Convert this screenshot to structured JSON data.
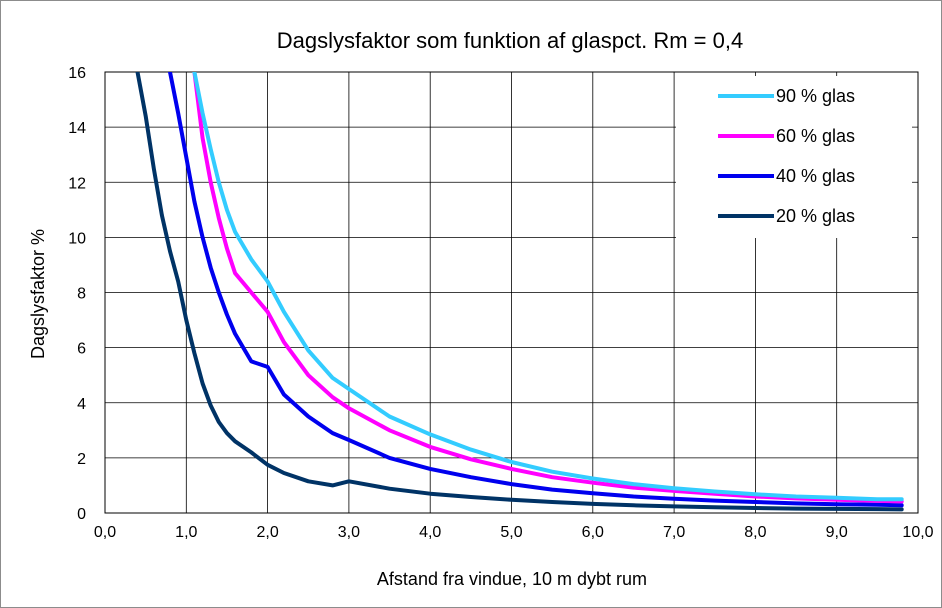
{
  "chart_data": {
    "type": "line",
    "title": "Dagslysfaktor som funktion af glaspct. Rm = 0,4",
    "xlabel": "Afstand fra vindue, 10 m dybt rum",
    "ylabel": "Dagslysfaktor %",
    "xlim": [
      0,
      10
    ],
    "ylim": [
      0,
      16
    ],
    "x_ticks": [
      "0,0",
      "1,0",
      "2,0",
      "3,0",
      "4,0",
      "5,0",
      "6,0",
      "7,0",
      "8,0",
      "9,0",
      "10,0"
    ],
    "y_ticks": [
      "0",
      "2",
      "4",
      "6",
      "8",
      "10",
      "12",
      "14",
      "16"
    ],
    "grid": true,
    "legend_position": "top-right",
    "x": [
      0.4,
      0.5,
      0.6,
      0.7,
      0.8,
      0.9,
      1.0,
      1.1,
      1.2,
      1.3,
      1.4,
      1.5,
      1.6,
      1.8,
      2.0,
      2.2,
      2.5,
      2.8,
      3.0,
      3.5,
      4.0,
      4.5,
      5.0,
      5.5,
      6.0,
      6.5,
      7.0,
      7.5,
      8.0,
      8.5,
      9.0,
      9.5,
      9.8
    ],
    "series": [
      {
        "name": "90 % glas",
        "color": "#33ccff",
        "values": [
          null,
          null,
          null,
          null,
          null,
          null,
          null,
          16.0,
          14.5,
          13.2,
          12.0,
          11.0,
          10.2,
          9.2,
          8.4,
          7.3,
          5.9,
          4.9,
          4.5,
          3.5,
          2.85,
          2.3,
          1.85,
          1.5,
          1.25,
          1.05,
          0.9,
          0.78,
          0.68,
          0.6,
          0.55,
          0.5,
          0.5
        ]
      },
      {
        "name": "60 % glas",
        "color": "#ff00ff",
        "values": [
          null,
          null,
          null,
          null,
          null,
          null,
          null,
          16.0,
          13.6,
          12.0,
          10.7,
          9.6,
          8.7,
          8.0,
          7.3,
          6.2,
          5.0,
          4.2,
          3.8,
          3.0,
          2.4,
          1.95,
          1.6,
          1.3,
          1.1,
          0.92,
          0.8,
          0.7,
          0.6,
          0.53,
          0.48,
          0.44,
          0.42
        ]
      },
      {
        "name": "40 % glas",
        "color": "#0000ee",
        "values": [
          null,
          null,
          null,
          null,
          16.0,
          14.5,
          12.9,
          11.3,
          10.0,
          8.9,
          8.0,
          7.2,
          6.5,
          5.5,
          5.3,
          4.3,
          3.5,
          2.9,
          2.65,
          2.0,
          1.6,
          1.3,
          1.05,
          0.85,
          0.72,
          0.6,
          0.52,
          0.45,
          0.4,
          0.35,
          0.32,
          0.3,
          0.28
        ]
      },
      {
        "name": "20 % glas",
        "color": "#003366",
        "values": [
          16.0,
          14.4,
          12.5,
          10.8,
          9.5,
          8.4,
          7.0,
          5.8,
          4.7,
          3.9,
          3.3,
          2.9,
          2.6,
          2.2,
          1.75,
          1.45,
          1.15,
          1.0,
          1.15,
          0.88,
          0.7,
          0.58,
          0.48,
          0.4,
          0.33,
          0.28,
          0.24,
          0.21,
          0.18,
          0.16,
          0.15,
          0.14,
          0.13
        ]
      }
    ]
  }
}
